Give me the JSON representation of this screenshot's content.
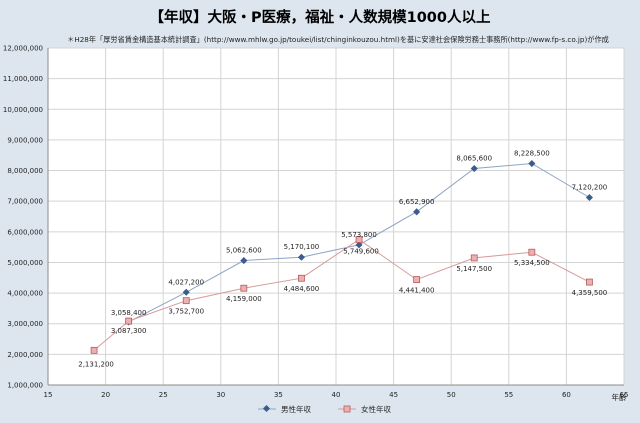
{
  "chart_data": {
    "type": "line",
    "title": "【年収】大阪・P医療，福祉・人数規模1000人以上",
    "subtitle": "＊H28年「厚労省賃金構造基本統計調査」(http://www.mhlw.go.jp/toukei/list/chinginkouzou.html)を基に安達社会保険労務士事務所(http://www.fp-s.co.jp)が作成",
    "xlabel": "年齢",
    "ylabel": "",
    "xlim": [
      15,
      65
    ],
    "ylim": [
      1000000,
      12000000
    ],
    "x_ticks": [
      15,
      20,
      25,
      30,
      35,
      40,
      45,
      50,
      55,
      60,
      65
    ],
    "y_ticks": [
      1000000,
      2000000,
      3000000,
      4000000,
      5000000,
      6000000,
      7000000,
      8000000,
      9000000,
      10000000,
      11000000,
      12000000
    ],
    "y_tick_labels": [
      "1,000,000",
      "2,000,000",
      "3,000,000",
      "4,000,000",
      "5,000,000",
      "6,000,000",
      "7,000,000",
      "8,000,000",
      "9,000,000",
      "10,000,000",
      "11,000,000",
      "12,000,000"
    ],
    "grid": "both",
    "legend": "bottom",
    "series": [
      {
        "name": "男性年収",
        "color": "#3b5c8e",
        "line_color": "#8ea4c4",
        "marker": "diamond",
        "points": [
          {
            "x": 22,
            "y": 3058400,
            "label": "3,058,400"
          },
          {
            "x": 27,
            "y": 4027200,
            "label": "4,027,200"
          },
          {
            "x": 32,
            "y": 5062600,
            "label": "5,062,600"
          },
          {
            "x": 37,
            "y": 5170100,
            "label": "5,170,100"
          },
          {
            "x": 42,
            "y": 5573800,
            "label": "5,573,800"
          },
          {
            "x": 47,
            "y": 6652900,
            "label": "6,652,900"
          },
          {
            "x": 52,
            "y": 8065600,
            "label": "8,065,600"
          },
          {
            "x": 57,
            "y": 8228500,
            "label": "8,228,500"
          },
          {
            "x": 62,
            "y": 7120200,
            "label": "7,120,200"
          }
        ]
      },
      {
        "name": "女性年収",
        "color": "#d88585",
        "line_color": "#d89a9a",
        "marker": "square",
        "points": [
          {
            "x": 19,
            "y": 2131200,
            "label": "2,131,200"
          },
          {
            "x": 22,
            "y": 3087300,
            "label": "3,087,300"
          },
          {
            "x": 27,
            "y": 3752700,
            "label": "3,752,700"
          },
          {
            "x": 32,
            "y": 4159000,
            "label": "4,159,000"
          },
          {
            "x": 37,
            "y": 4484600,
            "label": "4,484,600"
          },
          {
            "x": 42,
            "y": 5749600,
            "label": "5,749,600"
          },
          {
            "x": 47,
            "y": 4441400,
            "label": "4,441,400"
          },
          {
            "x": 52,
            "y": 5147500,
            "label": "5,147,500"
          },
          {
            "x": 57,
            "y": 5334500,
            "label": "5,334,500"
          },
          {
            "x": 62,
            "y": 4359500,
            "label": "4,359,500"
          }
        ]
      }
    ]
  }
}
